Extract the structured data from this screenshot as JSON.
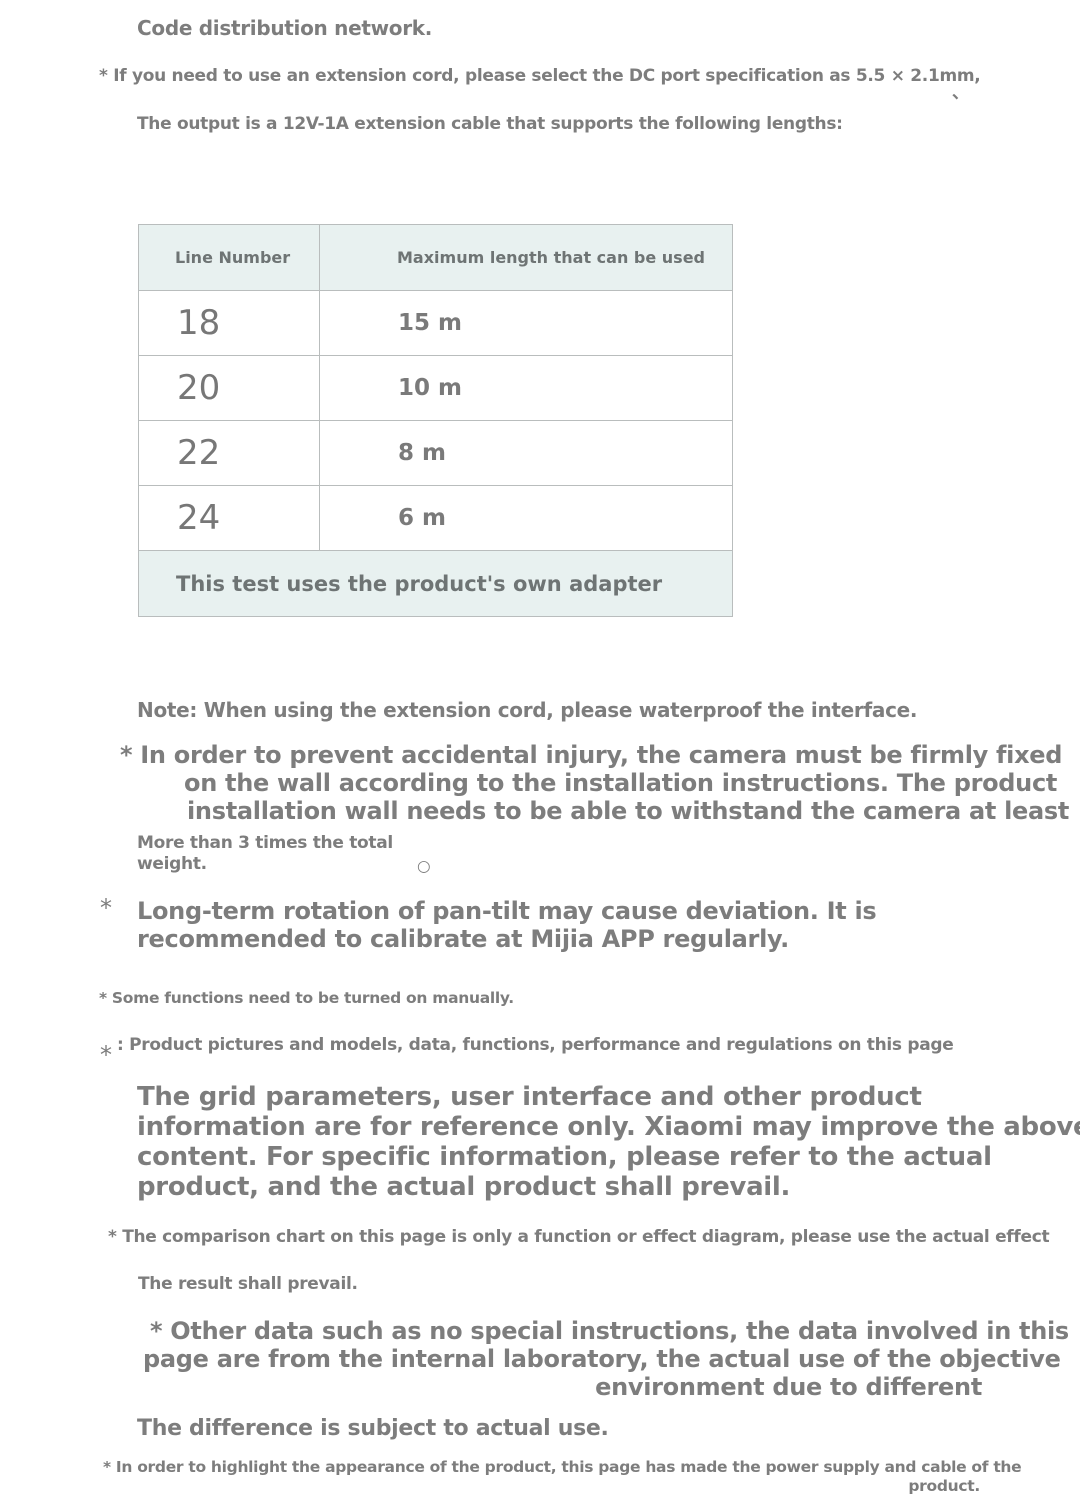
{
  "intro": {
    "line1": "Code distribution network.",
    "line2": "* If you need to use an extension cord, please select the DC port specification as 5.5 × 2.1mm,",
    "mark": "、",
    "line3": "The output is a 12V-1A extension cable that supports the following lengths:"
  },
  "table": {
    "headers": [
      "Line Number",
      "Maximum length that can be used"
    ],
    "rows": [
      {
        "line": "18",
        "length": "15 m"
      },
      {
        "line": "20",
        "length": "10 m"
      },
      {
        "line": "22",
        "length": "8 m"
      },
      {
        "line": "24",
        "length": "6 m"
      }
    ],
    "footer": "This test uses the product's own adapter"
  },
  "notes": {
    "waterproof": "Note: When using the extension cord, please waterproof the interface.",
    "injury": [
      "* In order to prevent accidental injury, the camera must be firmly fixed",
      "on the wall according to the installation instructions. The product",
      "installation wall needs to be able to withstand the camera at least"
    ],
    "weight": [
      "More than 3 times the total",
      "weight."
    ],
    "weight_mark": "○",
    "rotation_star": "*",
    "rotation": [
      "Long-term rotation of pan-tilt may cause deviation. It is",
      "recommended to calibrate at Mijia APP regularly."
    ],
    "manual": "* Some functions need to be turned on manually.",
    "pictures_star": "*",
    "pictures": ": Product pictures and models, data, functions, performance and regulations on this page",
    "grid": [
      "The grid parameters, user interface and other product",
      "information are for reference only. Xiaomi may improve the above",
      "content. For specific information, please refer to the actual",
      "product, and the actual product shall prevail."
    ],
    "comparison": "* The comparison chart on this page is only a function or effect diagram, please use the actual effect",
    "result": "The result shall prevail.",
    "other": [
      "* Other data such as no special instructions, the data involved in this",
      "page are from the internal laboratory, the actual use of the objective",
      "environment due to different"
    ],
    "difference": "The difference is subject to actual use.",
    "appearance": [
      "* In order to highlight the appearance of the product, this page has made the power supply and cable of the",
      "product."
    ]
  }
}
